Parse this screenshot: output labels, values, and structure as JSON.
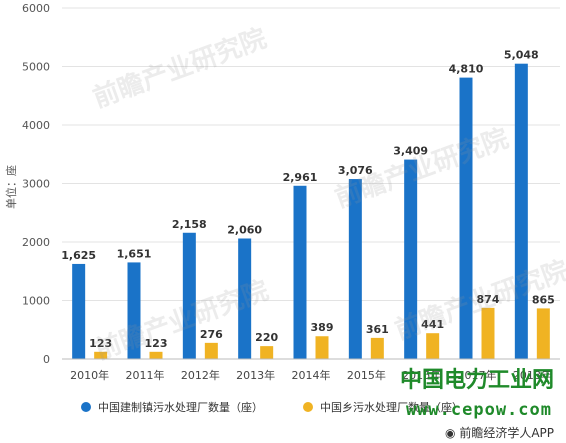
{
  "chart_data": {
    "type": "bar",
    "categories": [
      "2010年",
      "2011年",
      "2012年",
      "2013年",
      "2014年",
      "2015年",
      "2016年",
      "2017年",
      "2018年"
    ],
    "series": [
      {
        "name": "中国建制镇污水处理厂数量（座）",
        "color": "#1a73c8",
        "values": [
          1625,
          1651,
          2158,
          2060,
          2961,
          3076,
          3409,
          4810,
          5048
        ],
        "labels": [
          "1,625",
          "1,651",
          "2,158",
          "2,060",
          "2,961",
          "3,076",
          "3,409",
          "4,810",
          "5,048"
        ]
      },
      {
        "name": "中国乡污水处理厂数量（座）",
        "color": "#f0b323",
        "values": [
          123,
          123,
          276,
          220,
          389,
          361,
          441,
          874,
          865
        ],
        "labels": [
          "123",
          "123",
          "276",
          "220",
          "389",
          "361",
          "441",
          "874",
          "865"
        ]
      }
    ],
    "ylabel": "单位：座",
    "ylim": [
      0,
      6000
    ],
    "yticks": [
      0,
      1000,
      2000,
      3000,
      4000,
      5000,
      6000
    ],
    "grid": true,
    "legend": "bottom"
  },
  "watermark": "前瞻产业研究院",
  "site_name": "中国电力工业网",
  "site_url": "www.cepow.com",
  "brand": "前瞻经济学人APP"
}
